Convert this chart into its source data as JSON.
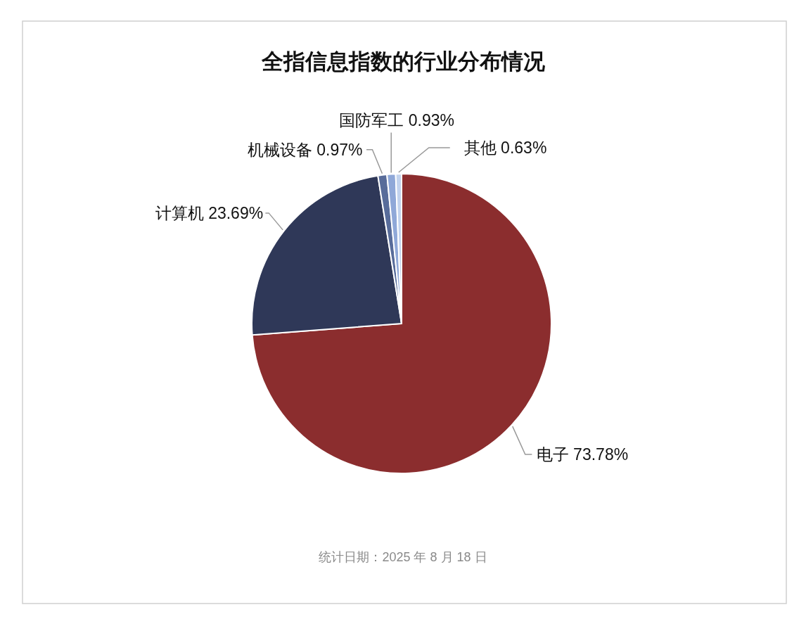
{
  "chart_data": {
    "type": "pie",
    "title": "全指信息指数的行业分布情况",
    "categories": [
      "电子",
      "计算机",
      "机械设备",
      "国防军工",
      "其他"
    ],
    "values": [
      73.78,
      23.69,
      0.97,
      0.93,
      0.63
    ],
    "colors": [
      "#8b2d2e",
      "#2f3858",
      "#586c9a",
      "#8fa8d8",
      "#c2d3ee"
    ],
    "value_labels": [
      "73.78%",
      "23.69%",
      "0.97%",
      "0.93%",
      "0.63%"
    ],
    "annotations": [
      "统计日期：2025 年 8 月 18 日"
    ]
  }
}
